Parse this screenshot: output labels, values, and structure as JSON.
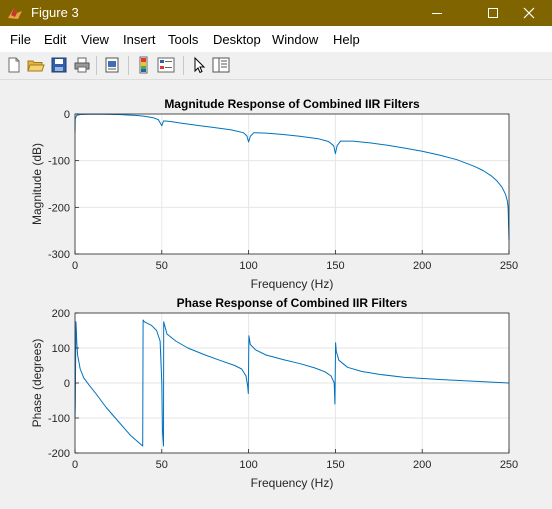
{
  "window": {
    "title": "Figure 3",
    "controls": [
      "minimize",
      "maximize",
      "close"
    ],
    "titlebar_color": "#806400"
  },
  "menu": [
    "File",
    "Edit",
    "View",
    "Insert",
    "Tools",
    "Desktop",
    "Window",
    "Help"
  ],
  "toolbar": {
    "icons": [
      "new-figure-icon",
      "open-file-icon",
      "save-icon",
      "print-icon",
      "print-preview-icon",
      "colorbar-icon",
      "legend-icon",
      "pointer-icon",
      "property-editor-icon"
    ]
  },
  "chart_data": [
    {
      "type": "line",
      "title": "Magnitude Response of Combined IIR Filters",
      "xlabel": "Frequency (Hz)",
      "ylabel": "Magnitude (dB)",
      "xlim": [
        0,
        250
      ],
      "ylim": [
        -300,
        0
      ],
      "xticks": [
        0,
        50,
        100,
        150,
        200,
        250
      ],
      "yticks": [
        0,
        -100,
        -200,
        -300
      ],
      "grid": true,
      "line_color": "#0072bd",
      "series": [
        {
          "x": [
            0,
            0.1,
            1,
            3,
            8,
            15,
            25,
            35,
            40,
            45,
            48,
            50,
            50.5,
            51,
            52,
            55,
            60,
            70,
            80,
            90,
            97,
            99,
            100,
            101,
            103,
            110,
            120,
            130,
            140,
            146,
            149,
            150,
            151,
            153,
            160,
            170,
            180,
            190,
            200,
            210,
            220,
            230,
            235,
            240,
            243,
            246,
            248,
            249,
            249.5,
            250
          ],
          "y": [
            -40,
            -10,
            -3,
            -1,
            -0.5,
            -0.5,
            -1,
            -3,
            -5,
            -8,
            -12,
            -25,
            -20,
            -15,
            -15,
            -16,
            -19,
            -24,
            -29,
            -34,
            -40,
            -47,
            -60,
            -48,
            -40,
            -41,
            -44,
            -48,
            -53,
            -59,
            -68,
            -85,
            -68,
            -58,
            -58,
            -62,
            -67,
            -73,
            -80,
            -88,
            -98,
            -112,
            -121,
            -133,
            -143,
            -157,
            -172,
            -186,
            -200,
            -270
          ]
        }
      ]
    },
    {
      "type": "line",
      "title": "Phase Response of Combined IIR Filters",
      "xlabel": "Frequency (Hz)",
      "ylabel": "Phase (degrees)",
      "xlim": [
        0,
        250
      ],
      "ylim": [
        -200,
        200
      ],
      "xticks": [
        0,
        50,
        100,
        150,
        200,
        250
      ],
      "yticks": [
        200,
        100,
        0,
        -100,
        -200
      ],
      "grid": true,
      "line_color": "#0072bd",
      "series": [
        {
          "x": [
            0,
            0.2,
            0.5,
            0.8,
            1,
            1.5,
            3,
            5,
            8,
            12,
            18,
            25,
            32,
            39,
            39.2,
            40,
            44,
            47,
            49,
            50,
            50.4,
            51,
            51.1,
            53,
            58,
            65,
            75,
            85,
            92,
            96,
            98.5,
            99.5,
            99.8,
            100.2,
            101,
            104,
            110,
            120,
            130,
            138,
            144,
            147.5,
            149.3,
            149.7,
            150.1,
            150.5,
            152,
            157,
            165,
            175,
            190,
            210,
            230,
            250
          ],
          "y": [
            -100,
            -60,
            175,
            150,
            120,
            80,
            40,
            15,
            -5,
            -30,
            -70,
            -110,
            -150,
            -180,
            180,
            175,
            165,
            150,
            120,
            0,
            -140,
            -180,
            175,
            140,
            120,
            100,
            80,
            62,
            50,
            40,
            20,
            -10,
            -30,
            135,
            110,
            95,
            80,
            67,
            55,
            43,
            32,
            20,
            0,
            -60,
            115,
            90,
            65,
            45,
            33,
            25,
            16,
            10,
            5,
            0
          ]
        }
      ]
    }
  ]
}
